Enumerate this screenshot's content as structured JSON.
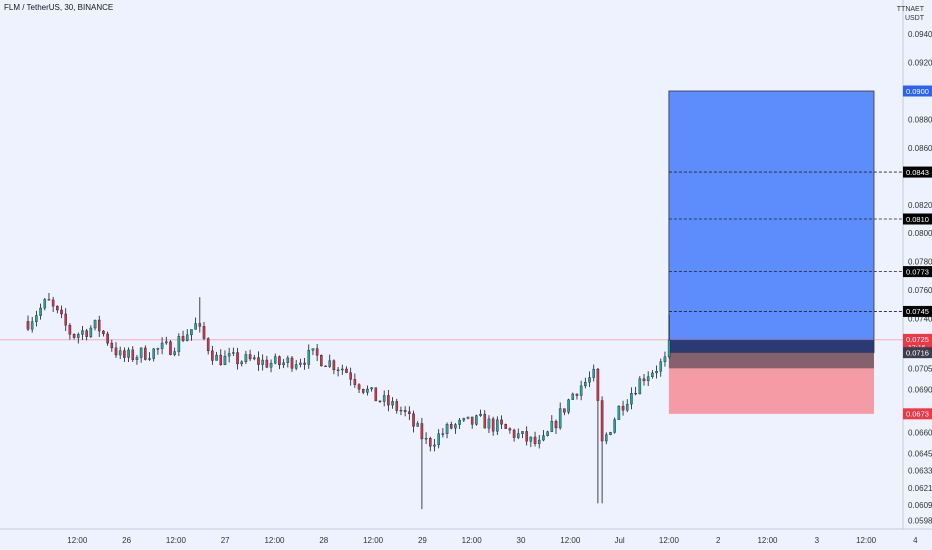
{
  "header": {
    "symbol_line": "FLM / TetherUS, 30, BINANCE"
  },
  "axis": {
    "price_unit_top": "TTNAET",
    "price_unit": "USDT"
  },
  "colors": {
    "background": "#eef2fe",
    "up": "#26a69a",
    "down": "#d1334a",
    "wick": "#131722",
    "profit_zone": "#5d8cfc",
    "loss_zone": "#f4919b",
    "current_price": "#f23645",
    "target": "#2962ff",
    "stop": "#f23645",
    "tag_dark": "#000000"
  },
  "chart_data": {
    "type": "candlestick",
    "title": "FLM / TetherUS, 30, BINANCE",
    "interval": "30",
    "exchange": "BINANCE",
    "ylim": [
      0.0592,
      0.0964
    ],
    "y_ticks": [
      "0.0940",
      "0.0920",
      "0.0880",
      "0.0860",
      "0.0820",
      "0.0800",
      "0.0780",
      "0.0760",
      "0.0740",
      "0.0705",
      "0.0690",
      "0.0660",
      "0.0645",
      "0.0633",
      "0.0621",
      "0.0609",
      "0.0598"
    ],
    "x_ticks": [
      {
        "label": "12:00",
        "x": 0.5
      },
      {
        "label": "26",
        "x": 1
      },
      {
        "label": "12:00",
        "x": 1.5
      },
      {
        "label": "27",
        "x": 2
      },
      {
        "label": "12:00",
        "x": 2.5
      },
      {
        "label": "28",
        "x": 3
      },
      {
        "label": "12:00",
        "x": 3.5
      },
      {
        "label": "29",
        "x": 4
      },
      {
        "label": "12:00",
        "x": 4.5
      },
      {
        "label": "30",
        "x": 5
      },
      {
        "label": "12:00",
        "x": 5.5
      },
      {
        "label": "Jul",
        "x": 6
      },
      {
        "label": "12:00",
        "x": 6.5
      },
      {
        "label": "2",
        "x": 7
      },
      {
        "label": "12:00",
        "x": 7.5
      },
      {
        "label": "3",
        "x": 8
      },
      {
        "label": "12:00",
        "x": 8.5
      },
      {
        "label": "4",
        "x": 9
      }
    ],
    "anchors": [
      {
        "x": 0.0,
        "c": 0.0738
      },
      {
        "x": 0.2,
        "c": 0.0752
      },
      {
        "x": 0.45,
        "c": 0.0728
      },
      {
        "x": 0.7,
        "c": 0.0735
      },
      {
        "x": 0.95,
        "c": 0.0712
      },
      {
        "x": 1.2,
        "c": 0.0716
      },
      {
        "x": 1.45,
        "c": 0.072
      },
      {
        "x": 1.7,
        "c": 0.0735
      },
      {
        "x": 1.9,
        "c": 0.0712
      },
      {
        "x": 2.3,
        "c": 0.071
      },
      {
        "x": 2.55,
        "c": 0.0708
      },
      {
        "x": 2.9,
        "c": 0.0714
      },
      {
        "x": 3.2,
        "c": 0.0705
      },
      {
        "x": 3.5,
        "c": 0.0685
      },
      {
        "x": 3.8,
        "c": 0.0675
      },
      {
        "x": 4.05,
        "c": 0.0652
      },
      {
        "x": 4.3,
        "c": 0.0664
      },
      {
        "x": 4.6,
        "c": 0.0668
      },
      {
        "x": 4.9,
        "c": 0.066
      },
      {
        "x": 5.2,
        "c": 0.065
      },
      {
        "x": 5.55,
        "c": 0.069
      },
      {
        "x": 5.75,
        "c": 0.07
      },
      {
        "x": 5.82,
        "c": 0.0651
      },
      {
        "x": 6.0,
        "c": 0.0678
      },
      {
        "x": 6.25,
        "c": 0.07
      },
      {
        "x": 6.47,
        "c": 0.071
      },
      {
        "x": 6.52,
        "c": 0.0725
      }
    ],
    "spikes": [
      {
        "x": 0.2,
        "h": 0.0758
      },
      {
        "x": 1.75,
        "h": 0.0755
      },
      {
        "x": 4.0,
        "l": 0.0606
      },
      {
        "x": 5.8,
        "l": 0.061
      },
      {
        "x": 6.5,
        "h": 0.0743
      }
    ],
    "last_price": 0.0725,
    "countdown": "17:16",
    "position": {
      "entry": 0.0716,
      "stop": 0.0673,
      "target": 0.09,
      "entry_x": 6.5,
      "end_x": 8.58,
      "take_profits": [
        0.0745,
        0.0773,
        0.081,
        0.0843
      ]
    },
    "price_tags": [
      {
        "label": "0.0900",
        "kind": "target"
      },
      {
        "label": "0.0843",
        "kind": "tp"
      },
      {
        "label": "0.0810",
        "kind": "tp"
      },
      {
        "label": "0.0773",
        "kind": "tp"
      },
      {
        "label": "0.0745",
        "kind": "tp"
      },
      {
        "label": "0.0725",
        "kind": "last"
      },
      {
        "label": "0.0716",
        "kind": "entry"
      },
      {
        "label": "0.0673",
        "kind": "stop"
      }
    ]
  }
}
